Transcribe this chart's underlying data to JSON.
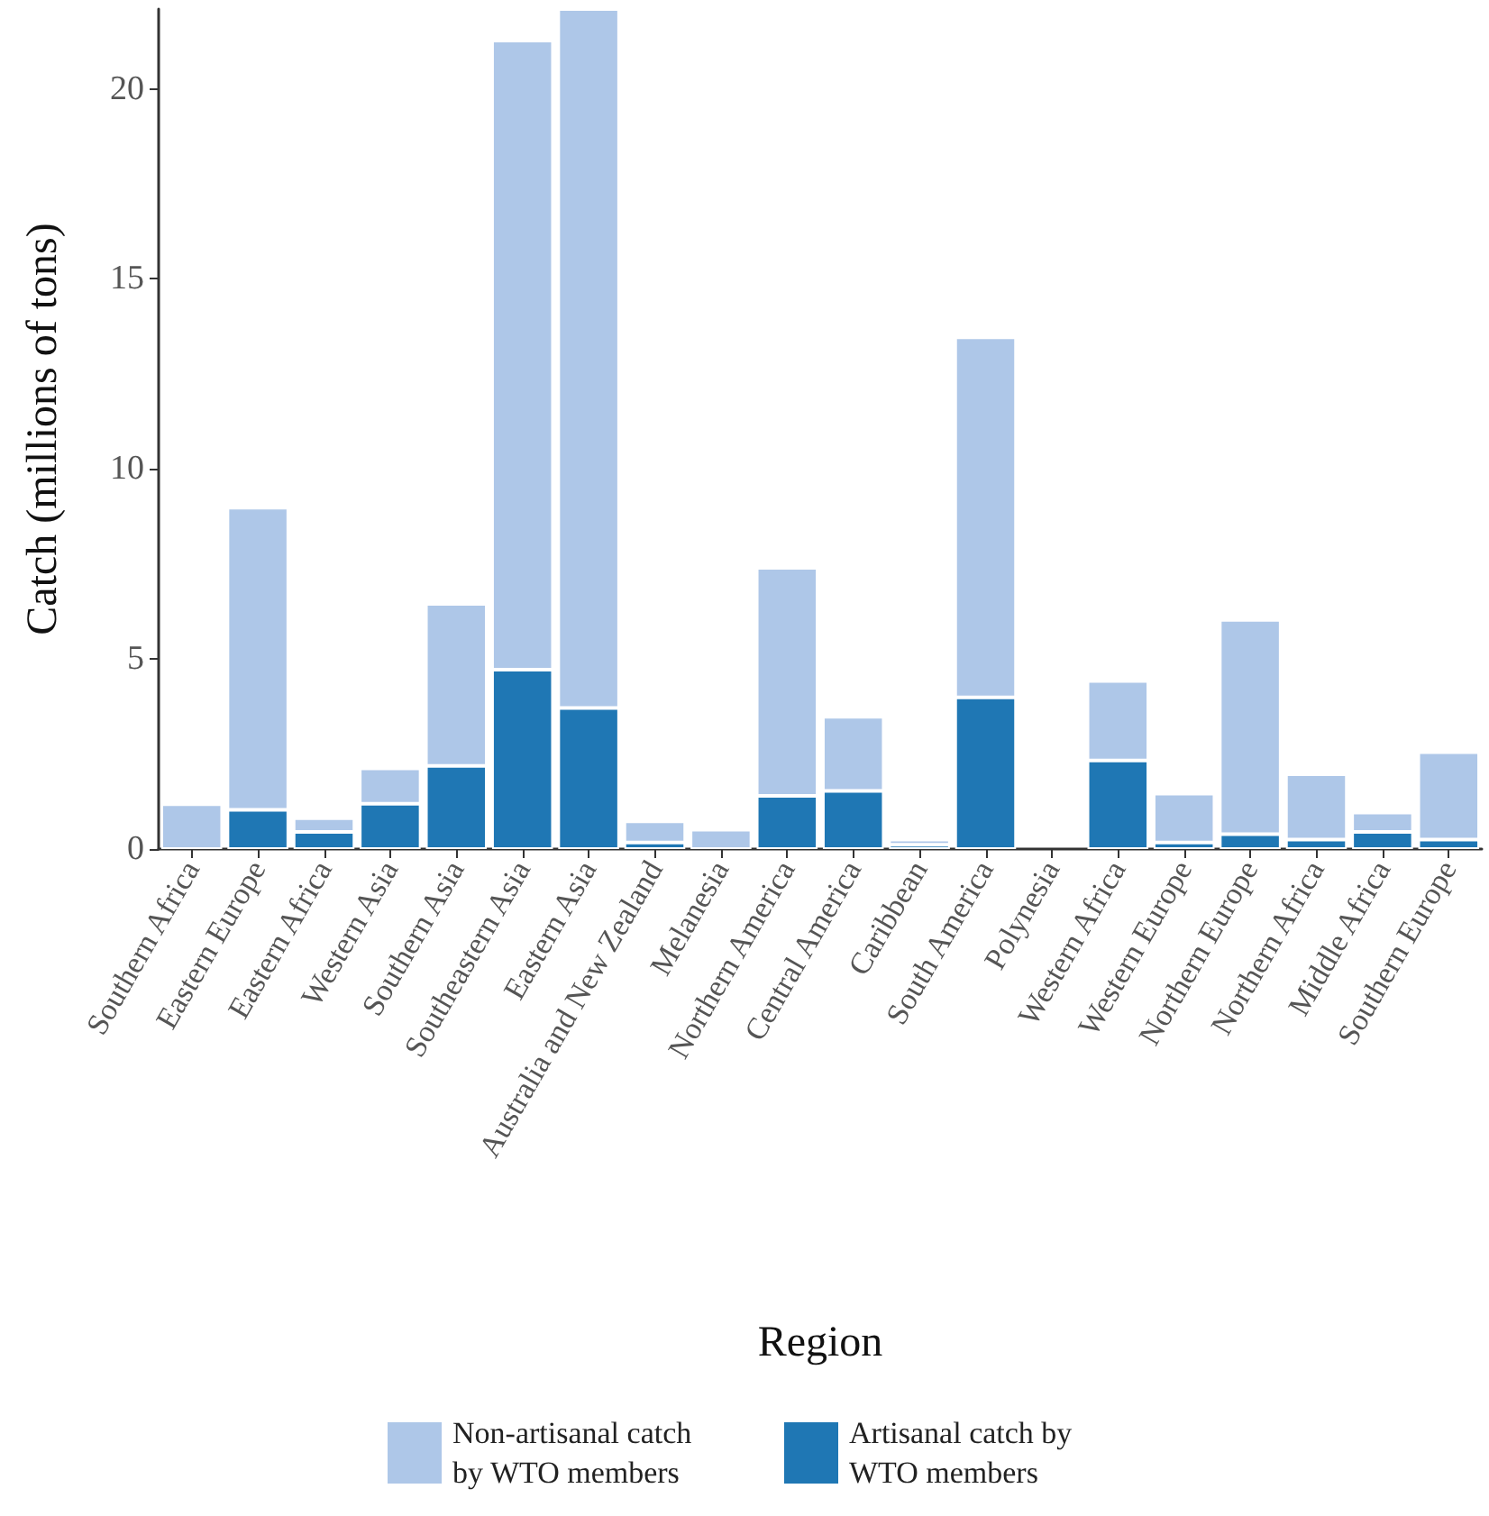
{
  "chart_data": {
    "type": "bar",
    "stacked": true,
    "xlabel": "Region",
    "ylabel": "Catch (millions of tons)",
    "categories": [
      "Southern Africa",
      "Eastern Europe",
      "Eastern Africa",
      "Western Asia",
      "Southern Asia",
      "Southeastern Asia",
      "Eastern Asia",
      "Australia and New Zealand",
      "Melanesia",
      "Northern America",
      "Central America",
      "Caribbean",
      "South America",
      "Polynesia",
      "Western Africa",
      "Western Europe",
      "Northern Europe",
      "Northern Africa",
      "Middle Africa",
      "Southern Europe"
    ],
    "series": [
      {
        "name": "Artisanal catch by WTO members",
        "color": "#1f77b4",
        "values": [
          0,
          1.03,
          0.45,
          1.19,
          2.19,
          4.72,
          3.71,
          0.17,
          0,
          1.4,
          1.53,
          0.11,
          3.99,
          0,
          2.33,
          0.17,
          0.39,
          0.25,
          0.45,
          0.25
        ]
      },
      {
        "name": "Non-artisanal catch by WTO members",
        "color": "#aec7e8",
        "values": [
          1.18,
          7.95,
          0.36,
          0.93,
          4.26,
          16.55,
          18.39,
          0.56,
          0.51,
          6.0,
          1.95,
          0.14,
          9.47,
          0,
          2.09,
          1.29,
          5.64,
          1.72,
          0.51,
          2.3
        ]
      }
    ],
    "ylim": [
      0,
      22.1
    ],
    "yticks": [
      0,
      5,
      10,
      15,
      20
    ],
    "grid": false,
    "legend": "bottom"
  }
}
